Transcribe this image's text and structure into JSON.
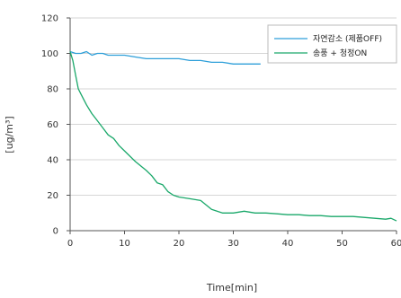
{
  "chart_data": {
    "type": "line",
    "xlabel": "Time[min]",
    "ylabel": "[ug/m³]",
    "xlim": [
      0,
      60
    ],
    "ylim": [
      0,
      120
    ],
    "xticks": [
      "0",
      "10",
      "20",
      "30",
      "40",
      "50",
      "60"
    ],
    "yticks": [
      "0",
      "20",
      "40",
      "60",
      "80",
      "100",
      "120"
    ],
    "grid": "horizontal",
    "legend_position": "top-right",
    "series": [
      {
        "name": "자연감소 (제품OFF)",
        "color": "#2e9fd9",
        "x": [
          0,
          1,
          2,
          3,
          4,
          5,
          6,
          7,
          8,
          10,
          12,
          14,
          16,
          18,
          20,
          22,
          24,
          26,
          28,
          30,
          32,
          34,
          35
        ],
        "y": [
          101,
          100,
          100,
          101,
          99,
          100,
          100,
          99,
          99,
          99,
          98,
          97,
          97,
          97,
          97,
          96,
          96,
          95,
          95,
          94,
          94,
          94,
          94
        ]
      },
      {
        "name": "송풍 + 청정ON",
        "color": "#1aa86a",
        "x": [
          0,
          0.5,
          1,
          1.5,
          2,
          3,
          4,
          5,
          6,
          7,
          8,
          9,
          10,
          12,
          14,
          15,
          16,
          17,
          18,
          19,
          20,
          22,
          24,
          26,
          28,
          30,
          32,
          34,
          36,
          38,
          40,
          42,
          44,
          46,
          48,
          50,
          52,
          54,
          56,
          58,
          59,
          60
        ],
        "y": [
          101,
          96,
          88,
          80,
          77,
          71,
          66,
          62,
          58,
          54,
          52,
          48,
          45,
          39,
          34,
          31,
          27,
          26,
          22,
          20,
          19,
          18,
          17,
          12,
          10,
          10,
          11,
          10,
          10,
          9.5,
          9,
          9,
          8.5,
          8.5,
          8,
          8,
          8,
          7.5,
          7,
          6.5,
          7,
          5.5
        ]
      }
    ]
  }
}
